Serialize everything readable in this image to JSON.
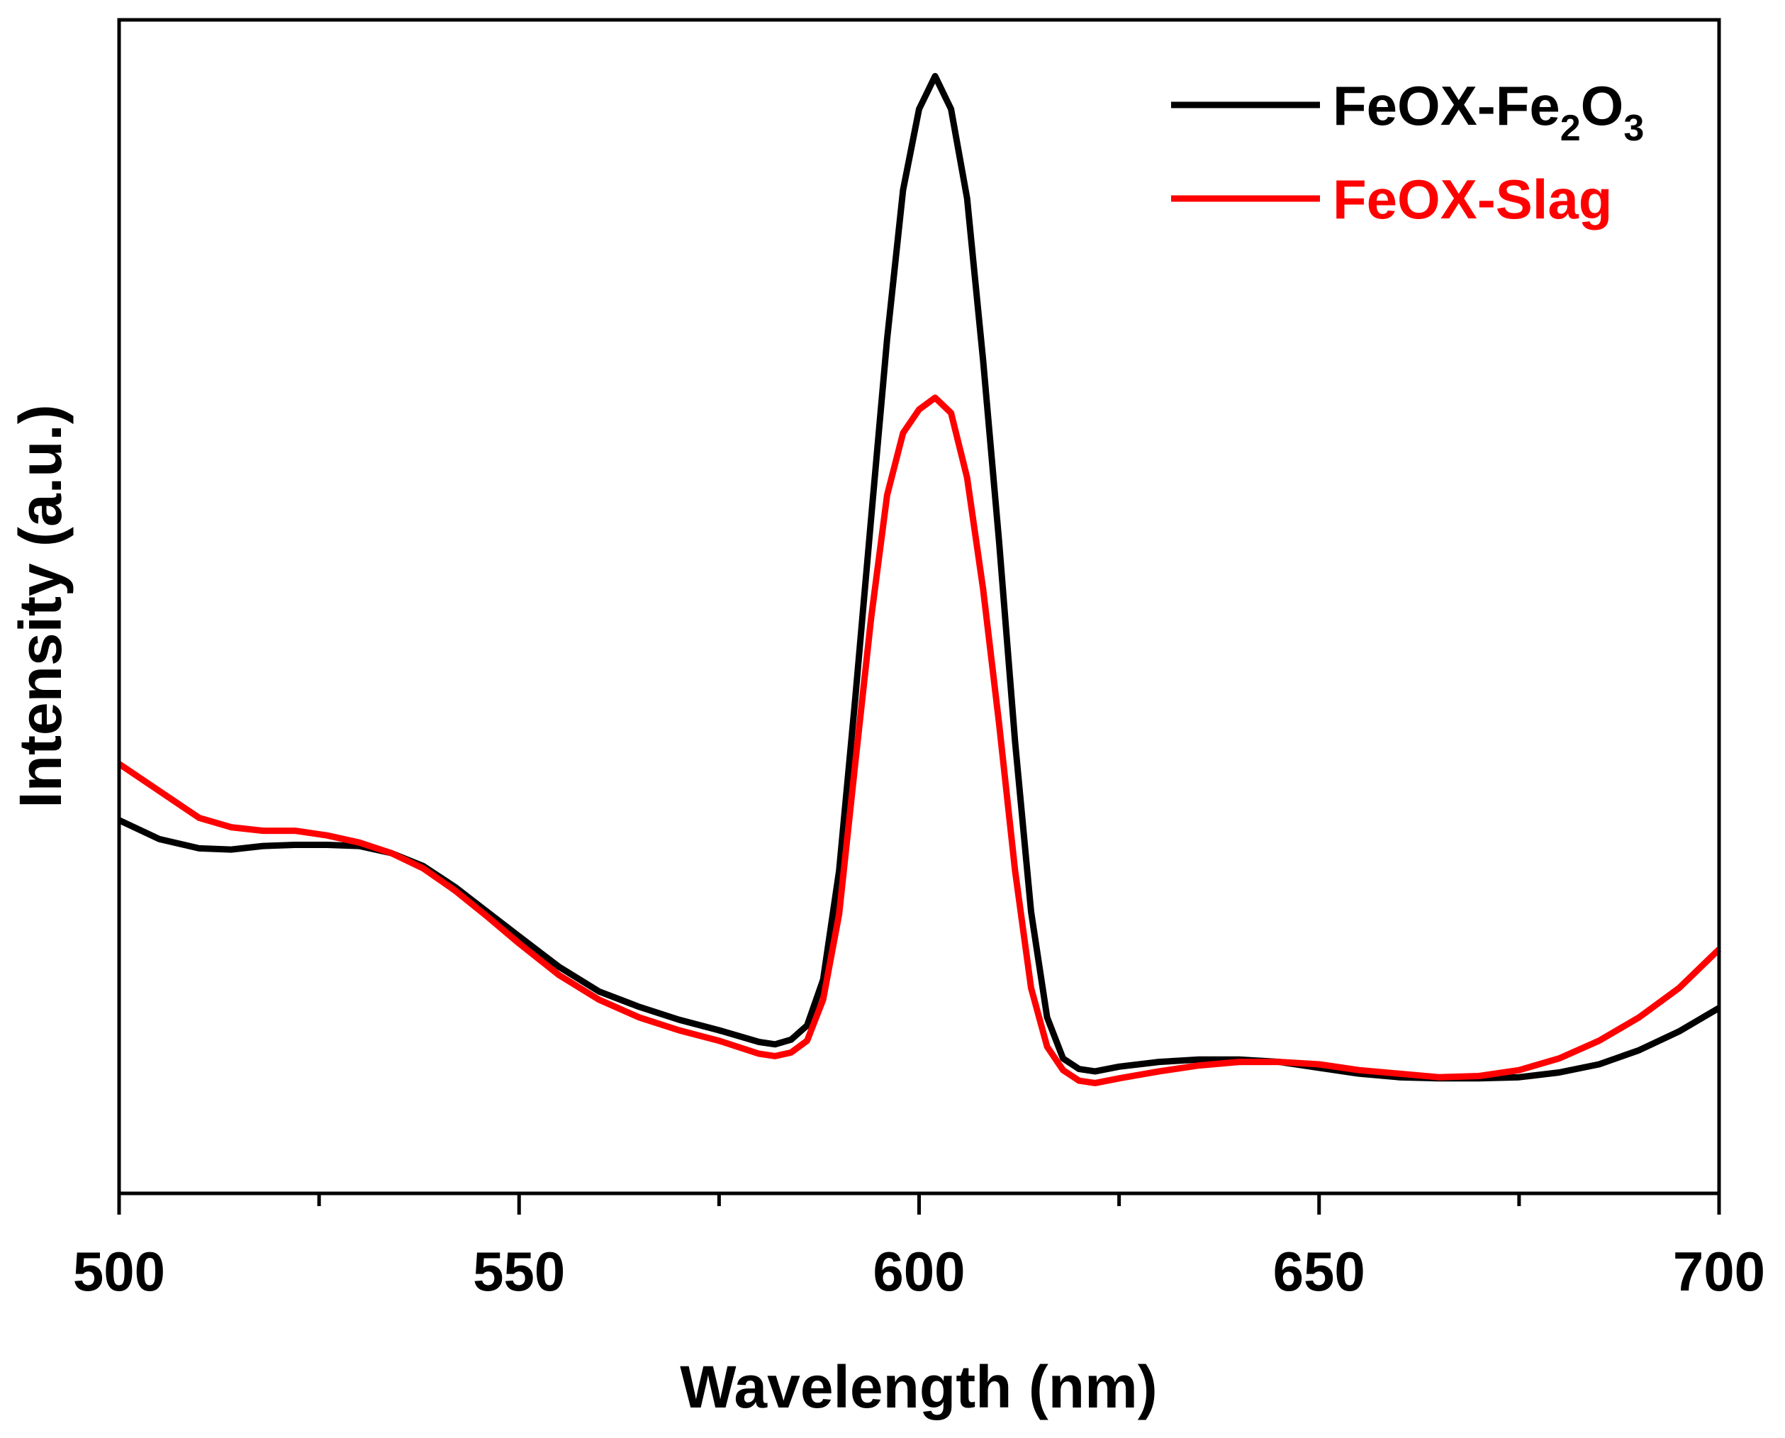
{
  "chart_data": {
    "type": "line",
    "title": "",
    "xlabel": "Wavelength (nm)",
    "ylabel": "Intensity (a.u.)",
    "xlim": [
      500,
      700
    ],
    "ylim": [
      0,
      100
    ],
    "x_ticks": [
      500,
      550,
      600,
      650,
      700
    ],
    "x_tick_labels": [
      "500",
      "550",
      "600",
      "650",
      "700"
    ],
    "y_ticks_shown": false,
    "grid": false,
    "legend_position": "top-right",
    "series": [
      {
        "name": "FeOX-Fe2O3",
        "label_parts": [
          {
            "text": "FeOX-Fe",
            "sub": false
          },
          {
            "text": "2",
            "sub": true
          },
          {
            "text": "O",
            "sub": false
          },
          {
            "text": "3",
            "sub": true
          }
        ],
        "color": "#000000",
        "x": [
          500,
          505,
          510,
          514,
          518,
          522,
          526,
          530,
          534,
          538,
          542,
          546,
          550,
          555,
          560,
          565,
          570,
          575,
          580,
          582,
          584,
          586,
          588,
          590,
          592,
          594,
          596,
          598,
          600,
          602,
          604,
          606,
          608,
          610,
          612,
          614,
          616,
          618,
          620,
          622,
          625,
          630,
          635,
          640,
          645,
          650,
          655,
          660,
          665,
          670,
          675,
          680,
          685,
          690,
          695,
          700
        ],
        "y": [
          31.8,
          30.2,
          29.4,
          29.3,
          29.6,
          29.7,
          29.7,
          29.6,
          29.0,
          27.9,
          26.1,
          24.0,
          21.9,
          19.3,
          17.2,
          15.9,
          14.8,
          13.9,
          12.9,
          12.7,
          13.1,
          14.3,
          18.2,
          27.5,
          42.0,
          57.5,
          72.8,
          85.5,
          92.4,
          95.2,
          92.4,
          84.8,
          71.0,
          55.5,
          38.5,
          24.0,
          15.0,
          11.5,
          10.6,
          10.4,
          10.8,
          11.2,
          11.4,
          11.4,
          11.2,
          10.7,
          10.2,
          9.9,
          9.8,
          9.8,
          9.9,
          10.3,
          11.0,
          12.2,
          13.8,
          15.8
        ],
        "draw_start_x": 500,
        "draw_end_x": 700
      },
      {
        "name": "FeOX-Slag",
        "label_parts": [
          {
            "text": "FeOX-Slag",
            "sub": false
          }
        ],
        "color": "#ff0000",
        "x": [
          500,
          505,
          510,
          514,
          518,
          522,
          526,
          530,
          534,
          538,
          542,
          546,
          550,
          555,
          560,
          565,
          570,
          575,
          580,
          582,
          584,
          586,
          588,
          590,
          592,
          594,
          596,
          598,
          600,
          602,
          604,
          606,
          608,
          610,
          612,
          614,
          616,
          618,
          620,
          622,
          625,
          630,
          635,
          640,
          645,
          650,
          655,
          660,
          665,
          670,
          675,
          680,
          685,
          690,
          695,
          700
        ],
        "y": [
          36.6,
          34.3,
          32.0,
          31.2,
          30.9,
          30.9,
          30.5,
          29.9,
          29.0,
          27.7,
          25.8,
          23.6,
          21.3,
          18.6,
          16.5,
          15.0,
          13.9,
          13.0,
          11.9,
          11.7,
          12.0,
          13.0,
          16.5,
          23.8,
          36.5,
          49.0,
          59.5,
          64.8,
          66.8,
          67.8,
          66.5,
          61.0,
          51.5,
          40.0,
          27.5,
          17.5,
          12.5,
          10.5,
          9.6,
          9.4,
          9.8,
          10.4,
          10.9,
          11.2,
          11.2,
          11.0,
          10.5,
          10.2,
          9.9,
          10.0,
          10.5,
          11.5,
          13.0,
          15.0,
          17.5,
          20.8
        ],
        "draw_start_x": 500,
        "draw_end_x": 700
      }
    ]
  }
}
